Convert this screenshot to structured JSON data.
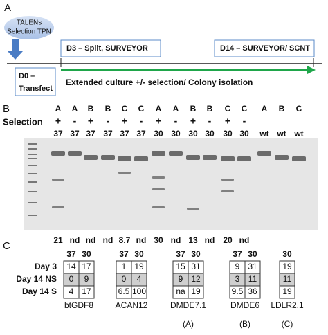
{
  "panel_a": {
    "label": "A",
    "bubble": [
      "TALENs",
      "Selection TPN"
    ],
    "d3": "D3 – Split, SURVEYOR",
    "d14": "D14 – SURVEYOR/ SCNT",
    "d0": [
      "D0 –",
      "Transfect"
    ],
    "culture": "Extended culture +/- selection/ Colony isolation"
  },
  "panel_b": {
    "label": "B",
    "selection_label": "Selection",
    "letters": [
      "A",
      "A",
      "B",
      "B",
      "C",
      "C",
      "A",
      "A",
      "B",
      "B",
      "C",
      "C",
      "A",
      "B",
      "C"
    ],
    "selection": [
      "+",
      "-",
      "+",
      "-",
      "+",
      "-",
      "+",
      "-",
      "+",
      "-",
      "+",
      "-"
    ],
    "temps": [
      37,
      37,
      37,
      37,
      37,
      37,
      30,
      30,
      30,
      30,
      30,
      30,
      "wt",
      "wt",
      "wt"
    ],
    "efficiency": [
      21,
      "nd",
      "nd",
      "nd",
      8.7,
      "nd",
      30,
      "nd",
      13,
      "nd",
      20,
      "nd"
    ]
  },
  "panel_c": {
    "label": "C",
    "row_labels": [
      "Day 3",
      "Day 14 NS",
      "Day 14 S"
    ],
    "tables": [
      {
        "headers": [
          37,
          30
        ],
        "rows": [
          [
            14,
            17
          ],
          [
            0,
            9
          ],
          [
            4,
            17
          ]
        ],
        "name": "btGDF8"
      },
      {
        "headers": [
          37,
          30
        ],
        "rows": [
          [
            1,
            19
          ],
          [
            0,
            4
          ],
          [
            6.5,
            100
          ]
        ],
        "name": "ACAN12"
      },
      {
        "headers": [
          37,
          30
        ],
        "rows": [
          [
            15,
            31
          ],
          [
            9,
            12
          ],
          [
            "na",
            19
          ]
        ],
        "name": "DMDE7.1",
        "group": "(A)"
      },
      {
        "headers": [
          37,
          30
        ],
        "rows": [
          [
            9,
            31
          ],
          [
            3,
            11
          ],
          [
            9.5,
            36
          ]
        ],
        "name": "DMDE6",
        "group": "(B)"
      },
      {
        "headers": [
          30
        ],
        "rows": [
          [
            19
          ],
          [
            11
          ],
          [
            19
          ]
        ],
        "name": "LDLR2.1",
        "group": "(C)"
      }
    ]
  }
}
